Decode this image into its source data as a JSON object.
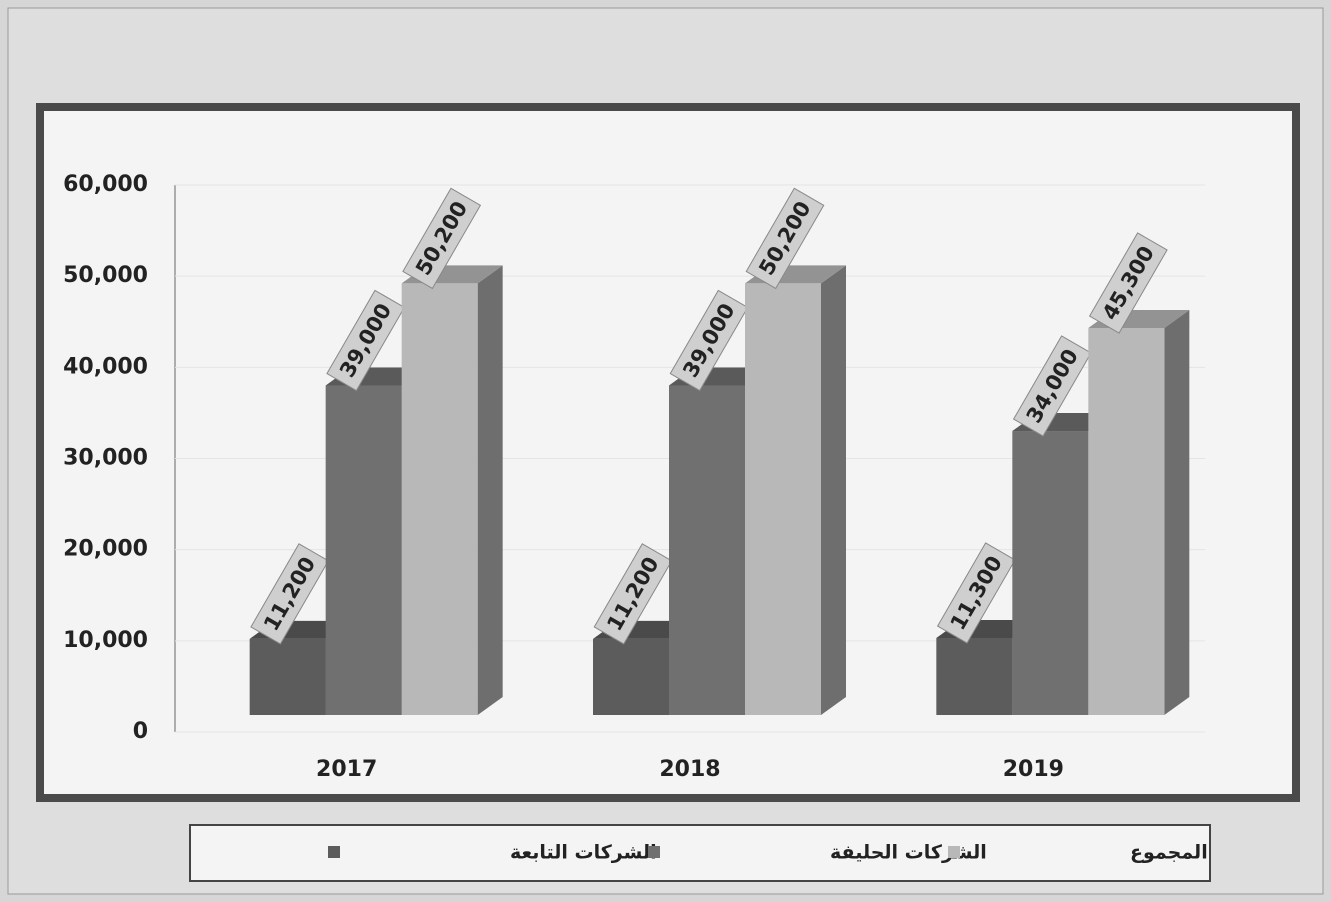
{
  "chart_data": {
    "type": "bar3d",
    "categories": [
      "2017",
      "2018",
      "2019"
    ],
    "series": [
      {
        "name": "الشركات التابعة",
        "color": "#5c5c5c",
        "values": [
          11200,
          11200,
          11300
        ],
        "value_labels": [
          "11,200",
          "11,200",
          "11,300"
        ]
      },
      {
        "name": "الشركات الحليفة",
        "color": "#707070",
        "values": [
          39000,
          39000,
          34000
        ],
        "value_labels": [
          "39,000",
          "39,000",
          "34,000"
        ]
      },
      {
        "name": "المجموع",
        "color": "#b8b8b8",
        "values": [
          50200,
          50200,
          45300
        ],
        "value_labels": [
          "50,200",
          "50,200",
          "45,300"
        ]
      }
    ],
    "ylim": [
      0,
      60000
    ],
    "yticks": [
      0,
      {
        "value": 10000,
        "label": "10,000"
      },
      {
        "value": 20000,
        "label": "20,000"
      },
      {
        "value": 30000,
        "label": "30,000"
      },
      {
        "value": 40000,
        "label": "40,000"
      },
      {
        "value": 50000,
        "label": "50,000"
      },
      {
        "value": 60000,
        "label": "60,000"
      }
    ]
  }
}
